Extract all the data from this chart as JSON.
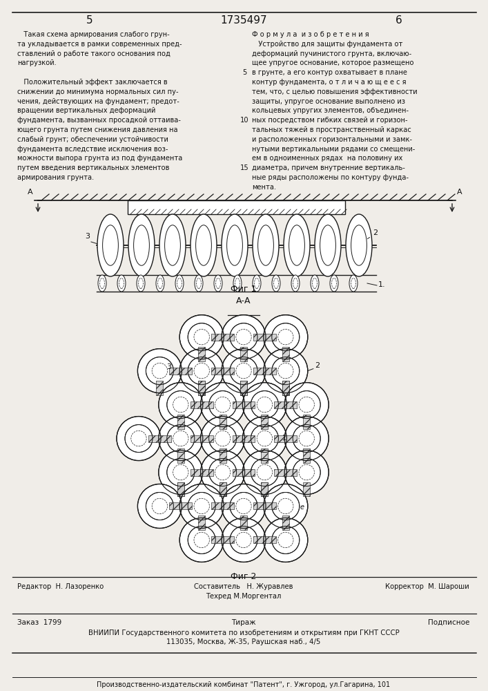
{
  "page_number_left": "5",
  "page_number_center": "1735497",
  "page_number_right": "6",
  "left_column_text": [
    "   Такая схема армирования слабого грун-",
    "та укладывается в рамки современных пред-",
    "ставлений о работе такого основания под",
    "нагрузкой.",
    "",
    "   Положительный эффект заключается в",
    "снижении до минимума нормальных сил пу-",
    "чения, действующих на фундамент; предот-",
    "вращении вертикальных деформаций",
    "фундамента, вызванных просадкой оттаива-",
    "ющего грунта путем снижения давления на",
    "слабый грунт; обеспечении устойчивости",
    "фундамента вследствие исключения воз-",
    "можности выпора грунта из под фундамента",
    "путем введения вертикальных элементов",
    "армирования грунта."
  ],
  "right_column_text": [
    "Ф о р м у л а  и з о б р е т е н и я",
    "   Устройство для защиты фундамента от",
    "деформаций пучинистого грунта, включаю-",
    "щее упругое основание, которое размещено",
    "в грунте, а его контур охватывает в плане",
    "контур фундамента, о т л и ч а ю щ е е с я",
    "тем, что, с целью повышения эффективности",
    "защиты, упругое основание выполнено из",
    "кольцевых упругих элементов, объединен-",
    "ных посредством гибких связей и горизон-",
    "тальных тяжей в пространственный каркас",
    "и расположенных горизонтальными и замк-",
    "нутыми вертикальными рядами со смещени-",
    "ем в одноименных рядах  на половину их",
    "диаметра, причем внутренние вертикаль-",
    "ные ряды расположены по контуру фунда-",
    "мента."
  ],
  "fig1_label": "Фиг 1",
  "fig2_label": "Фиг 2",
  "section_label": "А-А",
  "editor_line": "Редактор  Н. Лазоренко",
  "composer_label": "Составитель",
  "composer_name": "Н. Журавлев",
  "techred_line": "Техред М.Моргентал",
  "corrector_line": "Корректор  М. Шароши",
  "order_line": "Заказ  1799",
  "tirazh_line": "Тираж",
  "podpisnoe_line": "Подписное",
  "vniiipi_line": "ВНИИПИ Государственного комитета по изобретениям и открытиям при ГКНТ СССР",
  "address_line": "113035, Москва, Ж-35, Раушская наб., 4/5",
  "publisher_line": "Производственно-издательский комбинат \"Патент\", г. Ужгород, ул.Гагарина, 101",
  "bg_color": "#f0ede8",
  "text_color": "#111111",
  "line_color": "#1a1a1a"
}
